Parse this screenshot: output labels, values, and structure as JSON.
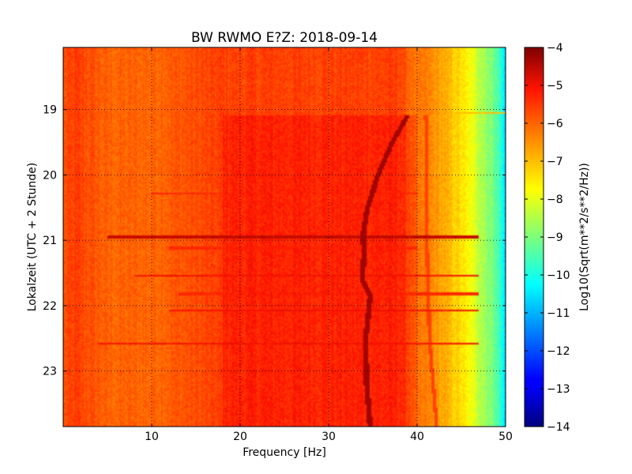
{
  "chart_data": {
    "type": "heatmap",
    "title": "BW RWMO E?Z: 2018-09-14",
    "xlabel": "Frequency [Hz]",
    "ylabel": "Lokalzeit (UTC + 2 Stunde)",
    "xlim": [
      0,
      50
    ],
    "ylim": [
      18.05,
      23.85
    ],
    "y_inverted": true,
    "grid": true,
    "x_ticks": [
      10,
      20,
      30,
      40,
      50
    ],
    "x_tick_labels": [
      "10",
      "20",
      "30",
      "40",
      "50"
    ],
    "y_ticks": [
      19,
      20,
      21,
      22,
      23
    ],
    "y_tick_labels": [
      "19",
      "20",
      "21",
      "22",
      "23"
    ],
    "colorbar": {
      "label": "Log10(Sqrt(m**2/s**2/Hz))",
      "range": [
        -14,
        -4
      ],
      "ticks": [
        -4,
        -5,
        -6,
        -7,
        -8,
        -9,
        -10,
        -11,
        -12,
        -13,
        -14
      ],
      "tick_labels": [
        "−4",
        "−5",
        "−6",
        "−7",
        "−8",
        "−9",
        "−10",
        "−11",
        "−12",
        "−13",
        "−14"
      ],
      "colormap": "jet"
    },
    "background_level": [
      {
        "freq": 0,
        "value": -5.8
      },
      {
        "freq": 1.5,
        "value": -5.6
      },
      {
        "freq": 5,
        "value": -6.0
      },
      {
        "freq": 10,
        "value": -6.0
      },
      {
        "freq": 18,
        "value": -5.6
      },
      {
        "freq": 30,
        "value": -5.6
      },
      {
        "freq": 38,
        "value": -5.6
      },
      {
        "freq": 40,
        "value": -6.3
      },
      {
        "freq": 41,
        "value": -6.3
      },
      {
        "freq": 43,
        "value": -6.8
      },
      {
        "freq": 45,
        "value": -7.4
      },
      {
        "freq": 47,
        "value": -8.3
      },
      {
        "freq": 49,
        "value": -9.3
      },
      {
        "freq": 50,
        "value": -10.6
      }
    ],
    "elevated_block": {
      "freq_range": [
        18,
        40
      ],
      "time_range": [
        19.1,
        23.85
      ],
      "delta": 0.35
    },
    "horizontal_lines": [
      {
        "time": 19.05,
        "freq_range": [
          0,
          50
        ],
        "value": -7.0
      },
      {
        "time": 20.28,
        "freq_range": [
          10,
          40
        ],
        "value": -5.3
      },
      {
        "time": 20.95,
        "freq_range": [
          5,
          47
        ],
        "value": -4.6
      },
      {
        "time": 21.12,
        "freq_range": [
          12,
          40
        ],
        "value": -5.3
      },
      {
        "time": 21.55,
        "freq_range": [
          8,
          47
        ],
        "value": -5.0
      },
      {
        "time": 21.82,
        "freq_range": [
          13,
          47
        ],
        "value": -5.3
      },
      {
        "time": 22.08,
        "freq_range": [
          12,
          47
        ],
        "value": -5.0
      },
      {
        "time": 22.58,
        "freq_range": [
          4,
          47
        ],
        "value": -5.0
      }
    ],
    "tremor_track": {
      "value": -4.3,
      "points": [
        {
          "time": 19.1,
          "freq": 38.9
        },
        {
          "time": 19.5,
          "freq": 37.2
        },
        {
          "time": 20.0,
          "freq": 35.6
        },
        {
          "time": 20.5,
          "freq": 34.4
        },
        {
          "time": 20.9,
          "freq": 33.9
        },
        {
          "time": 21.2,
          "freq": 34.0
        },
        {
          "time": 21.6,
          "freq": 33.8
        },
        {
          "time": 21.85,
          "freq": 34.7
        },
        {
          "time": 22.5,
          "freq": 34.2
        },
        {
          "time": 23.2,
          "freq": 34.3
        },
        {
          "time": 23.85,
          "freq": 34.7
        }
      ]
    },
    "faint_track": {
      "value": -5.6,
      "points": [
        {
          "time": 19.1,
          "freq": 41.0
        },
        {
          "time": 21.0,
          "freq": 41.1
        },
        {
          "time": 22.5,
          "freq": 41.4
        },
        {
          "time": 23.85,
          "freq": 42.2
        }
      ]
    }
  }
}
